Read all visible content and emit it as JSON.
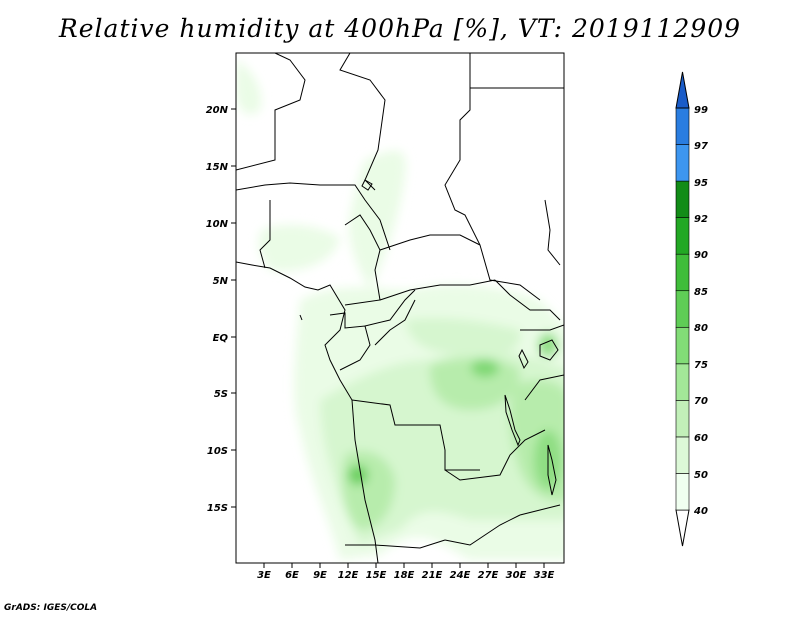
{
  "title": "Relative humidity at 400hPa [%], VT: 2019112909",
  "credit": "GrADS: IGES/COLA",
  "map": {
    "lat_labels": [
      "20N",
      "15N",
      "10N",
      "5N",
      "EQ",
      "5S",
      "10S",
      "15S"
    ],
    "lon_labels": [
      "3E",
      "6E",
      "9E",
      "12E",
      "15E",
      "18E",
      "21E",
      "24E",
      "27E",
      "30E",
      "33E"
    ]
  },
  "colorbar": {
    "levels": [
      "40",
      "50",
      "60",
      "70",
      "75",
      "80",
      "85",
      "90",
      "92",
      "95",
      "97",
      "99"
    ],
    "colors": [
      "#f0fff0",
      "#dcf8d7",
      "#c2f0b9",
      "#a3e898",
      "#82dc77",
      "#5fcd56",
      "#3fbd3a",
      "#22a824",
      "#128c17",
      "#3d96f0",
      "#2a7de0",
      "#1a5cc8"
    ]
  }
}
